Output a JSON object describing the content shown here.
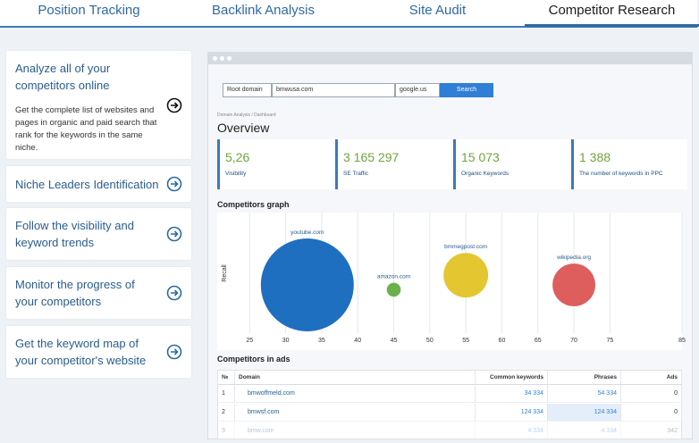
{
  "tabs": [
    "Position Tracking",
    "Backlink Analysis",
    "Site Audit",
    "Competitor Research"
  ],
  "active_tab": 3,
  "features": [
    {
      "title": "Analyze all of your competitors online",
      "description": "Get the complete list of websites and pages in organic and paid search that rank for the keywords in the same niche."
    },
    {
      "title": "Niche Leaders Identification"
    },
    {
      "title": "Follow the visibility and keyword trends"
    },
    {
      "title": "Monitor the progress of your competitors"
    },
    {
      "title": "Get the keyword map of your competitor's website"
    }
  ],
  "search": {
    "mode": "Root domain",
    "query": "bmwusa.com",
    "engine": "google.us",
    "button": "Search"
  },
  "breadcrumb": "Domain Analysis / Dashboard",
  "overview": {
    "title": "Overview",
    "metrics": [
      {
        "value": "5,26",
        "label": "Visibility"
      },
      {
        "value": "3 165 297",
        "label": "SE Traffic"
      },
      {
        "value": "15 073",
        "label": "Organic Keywords"
      },
      {
        "value": "1 388",
        "label": "The number of keywords in PPC"
      }
    ]
  },
  "graph": {
    "type": "scatter",
    "title": "Competitors graph",
    "y_label": "Recall",
    "xlim": [
      20.5,
      85
    ],
    "xticks": [
      25,
      30,
      35,
      40,
      45,
      50,
      55,
      60,
      65,
      70,
      75,
      85
    ],
    "ylim": [
      0,
      100
    ],
    "points": [
      {
        "name": "youtube.com",
        "x": 33,
        "y": 40,
        "size": 100,
        "color": "#1f6fc0"
      },
      {
        "name": "amazon.com",
        "x": 45,
        "y": 36,
        "size": 15,
        "color": "#6ab04c"
      },
      {
        "name": "bmmegpost.com",
        "x": 55,
        "y": 48,
        "size": 48,
        "color": "#e3c630"
      },
      {
        "name": "wikipedia.org",
        "x": 70,
        "y": 40,
        "size": 46,
        "color": "#de5d5d"
      }
    ]
  },
  "ads": {
    "title": "Competitors in ads",
    "columns": [
      "№",
      "Domain",
      "Common keywords",
      "Phrases",
      "Ads"
    ],
    "rows": [
      [
        "1",
        "bmwoffmeld.com",
        "34 334",
        "54 334",
        "0"
      ],
      [
        "2",
        "bmwsf.com",
        "124 334",
        "124 334",
        "0"
      ],
      [
        "3",
        "bmw.com",
        "4 334",
        "4 334",
        "342"
      ]
    ]
  }
}
